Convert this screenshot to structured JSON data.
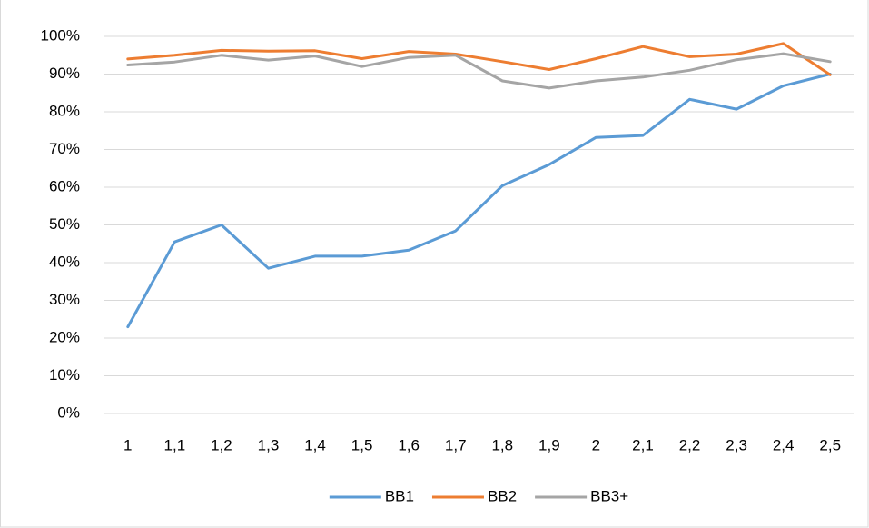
{
  "chart_data": {
    "type": "line",
    "categories": [
      "1",
      "1,1",
      "1,2",
      "1,3",
      "1,4",
      "1,5",
      "1,6",
      "1,7",
      "1,8",
      "1,9",
      "2",
      "2,1",
      "2,2",
      "2,3",
      "2,4",
      "2,5"
    ],
    "series": [
      {
        "name": "BB1",
        "color": "#5b9bd5",
        "values": [
          23,
          45.5,
          50,
          38.5,
          41.7,
          41.7,
          43.3,
          48.4,
          60.4,
          66,
          73.2,
          73.7,
          83.3,
          80.7,
          86.9,
          90
        ]
      },
      {
        "name": "BB2",
        "color": "#ed7d31",
        "values": [
          94,
          95,
          96.3,
          96.1,
          96.2,
          94.1,
          96,
          95.3,
          93.3,
          91.2,
          94.1,
          97.3,
          94.6,
          95.3,
          98.1,
          89.8
        ]
      },
      {
        "name": "BB3+",
        "color": "#a5a5a5",
        "values": [
          92.4,
          93.2,
          95,
          93.7,
          94.8,
          92,
          94.4,
          95,
          88.2,
          86.3,
          88.2,
          89.2,
          91,
          93.8,
          95.4,
          93.3
        ]
      }
    ],
    "ylim": [
      0,
      100
    ],
    "yticks": [
      {
        "value": 0,
        "label": "0%"
      },
      {
        "value": 10,
        "label": "10%"
      },
      {
        "value": 20,
        "label": "20%"
      },
      {
        "value": 30,
        "label": "30%"
      },
      {
        "value": 40,
        "label": "40%"
      },
      {
        "value": 50,
        "label": "50%"
      },
      {
        "value": 60,
        "label": "60%"
      },
      {
        "value": 70,
        "label": "70%"
      },
      {
        "value": 80,
        "label": "80%"
      },
      {
        "value": 90,
        "label": "90%"
      },
      {
        "value": 100,
        "label": "100%"
      }
    ],
    "grid": true,
    "legend": "bottom"
  }
}
